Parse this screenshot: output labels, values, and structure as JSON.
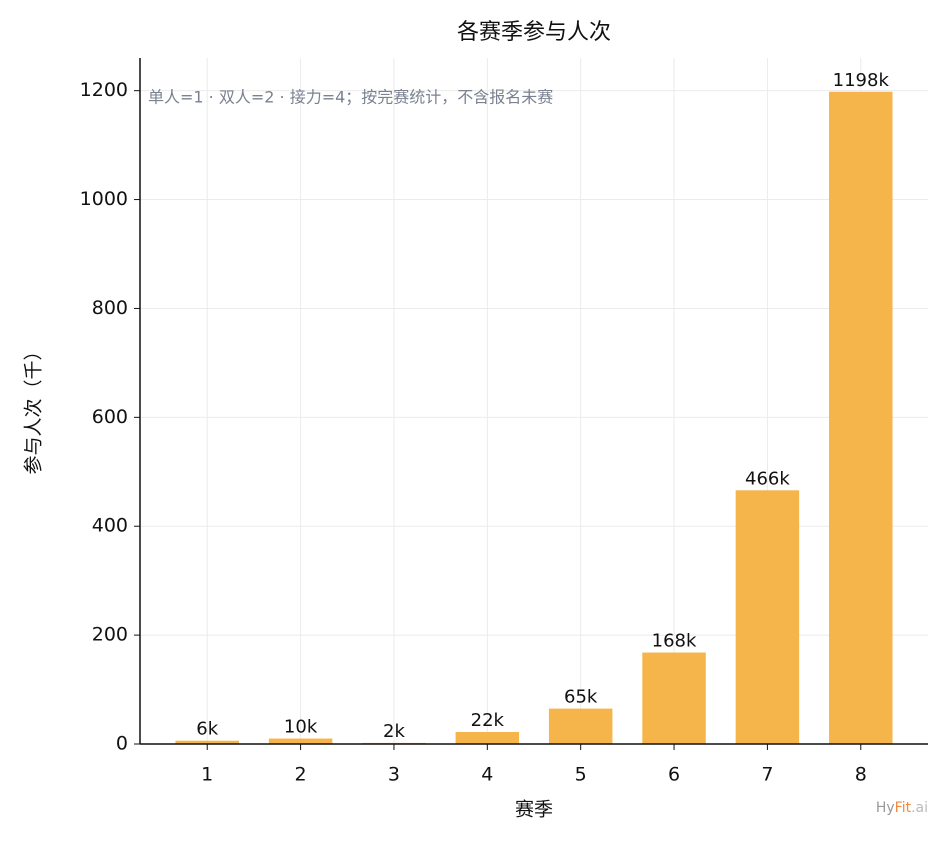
{
  "chart_data": {
    "type": "bar",
    "title": "各赛季参与人次",
    "x_label": "赛季",
    "y_label": "参与人次（千）",
    "annotation": "单人=1 · 双人=2 · 接力=4；按完赛统计，不含报名未赛",
    "categories": [
      "1",
      "2",
      "3",
      "4",
      "5",
      "6",
      "7",
      "8"
    ],
    "values": [
      6,
      10,
      2,
      22,
      65,
      168,
      466,
      1198
    ],
    "value_labels": [
      "6k",
      "10k",
      "2k",
      "22k",
      "65k",
      "168k",
      "466k",
      "1198k"
    ],
    "color": "#f5b54b",
    "ylim": [
      0,
      1260
    ],
    "yticks": [
      0,
      200,
      400,
      600,
      800,
      1000,
      1200
    ],
    "grid": true
  },
  "watermark": [
    "Hy",
    "Fit",
    ".ai"
  ]
}
